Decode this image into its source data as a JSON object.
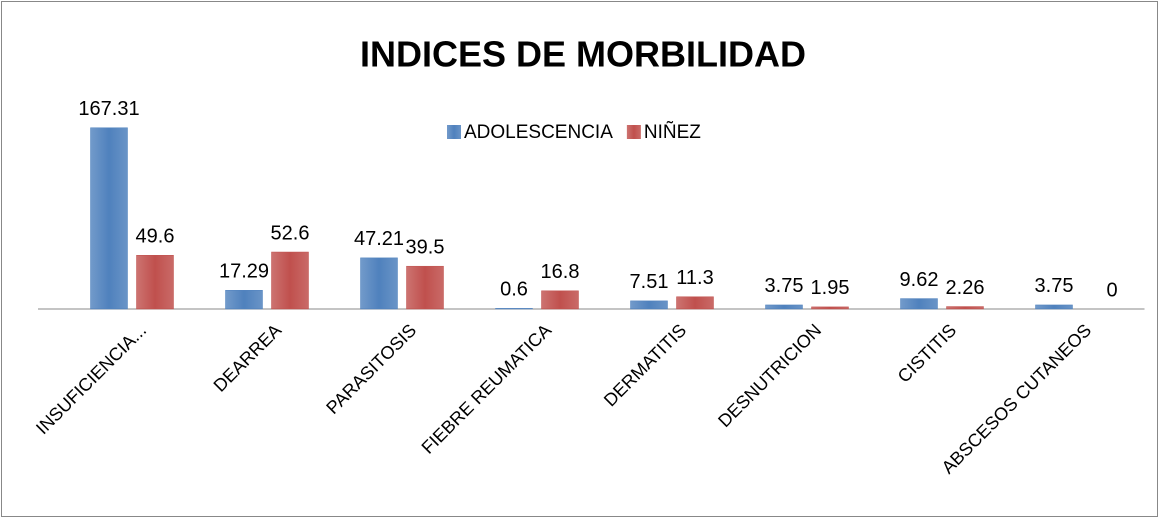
{
  "chart_data": {
    "type": "bar",
    "title": "INDICES DE MORBILIDAD",
    "categories": [
      "INSUFICIENCIA...",
      "DEARREA",
      "PARASITOSIS",
      "FIEBRE REUMATICA",
      "DERMATITIS",
      "DESNUTRICION",
      "CISTITIS",
      "ABSCESOS CUTANEOS"
    ],
    "series": [
      {
        "name": "ADOLESCENCIA",
        "color": "#4f81bd",
        "values": [
          167.31,
          17.29,
          47.21,
          0.6,
          7.51,
          3.75,
          9.62,
          3.75
        ]
      },
      {
        "name": "NIÑEZ",
        "color": "#c0504d",
        "values": [
          49.6,
          52.6,
          39.5,
          16.8,
          11.3,
          1.95,
          2.26,
          0
        ]
      }
    ],
    "ylim": [
      0,
      180
    ],
    "legend": "top"
  }
}
